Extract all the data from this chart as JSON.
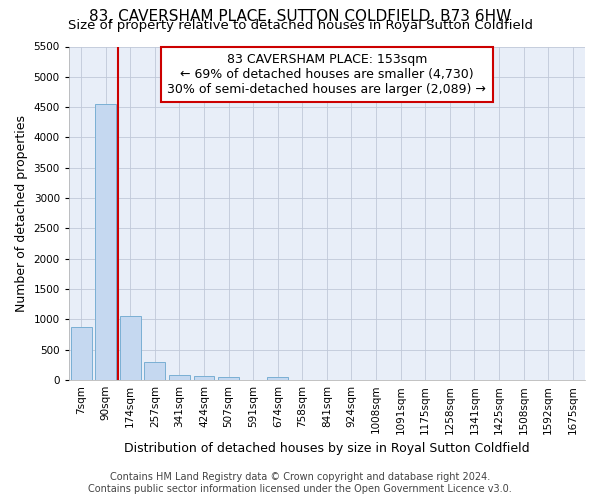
{
  "title": "83, CAVERSHAM PLACE, SUTTON COLDFIELD, B73 6HW",
  "subtitle": "Size of property relative to detached houses in Royal Sutton Coldfield",
  "xlabel": "Distribution of detached houses by size in Royal Sutton Coldfield",
  "ylabel": "Number of detached properties",
  "footer_line1": "Contains HM Land Registry data © Crown copyright and database right 2024.",
  "footer_line2": "Contains public sector information licensed under the Open Government Licence v3.0.",
  "annotation_title": "83 CAVERSHAM PLACE: 153sqm",
  "annotation_line2": "← 69% of detached houses are smaller (4,730)",
  "annotation_line3": "30% of semi-detached houses are larger (2,089) →",
  "bar_labels": [
    "7sqm",
    "90sqm",
    "174sqm",
    "257sqm",
    "341sqm",
    "424sqm",
    "507sqm",
    "591sqm",
    "674sqm",
    "758sqm",
    "841sqm",
    "924sqm",
    "1008sqm",
    "1091sqm",
    "1175sqm",
    "1258sqm",
    "1341sqm",
    "1425sqm",
    "1508sqm",
    "1592sqm",
    "1675sqm"
  ],
  "bar_values": [
    880,
    4560,
    1060,
    290,
    80,
    70,
    50,
    0,
    50,
    0,
    0,
    0,
    0,
    0,
    0,
    0,
    0,
    0,
    0,
    0,
    0
  ],
  "bar_color": "#c5d8f0",
  "bar_edge_color": "#7aafd4",
  "vline_x_index": 1.5,
  "vline_color": "#cc0000",
  "ylim": [
    0,
    5500
  ],
  "yticks": [
    0,
    500,
    1000,
    1500,
    2000,
    2500,
    3000,
    3500,
    4000,
    4500,
    5000,
    5500
  ],
  "plot_bg_color": "#e8eef8",
  "grid_color": "#c0c8d8",
  "title_fontsize": 11,
  "subtitle_fontsize": 9.5,
  "annotation_fontsize": 9,
  "axis_label_fontsize": 9,
  "tick_fontsize": 7.5,
  "footer_fontsize": 7
}
